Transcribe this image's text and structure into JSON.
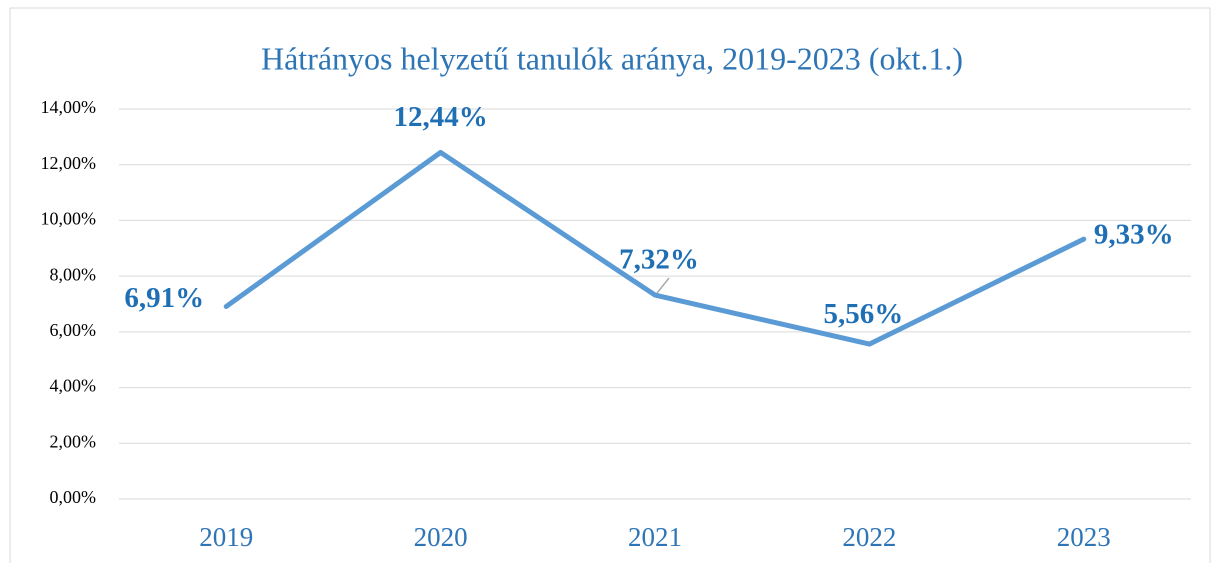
{
  "chart_data": {
    "type": "line",
    "title": "Hátrányos helyzetű tanulók aránya, 2019-2023 (okt.1.)",
    "categories": [
      "2019",
      "2020",
      "2021",
      "2022",
      "2023"
    ],
    "series": [
      {
        "name": "Hátrányos helyzetű tanulók aránya",
        "color": "#5b9bd5",
        "values": [
          6.91,
          12.44,
          7.32,
          5.56,
          9.33
        ],
        "value_labels": [
          "6,91%",
          "12,44%",
          "7,32%",
          "5,56%",
          "9,33%"
        ]
      }
    ],
    "ylim": [
      0,
      14
    ],
    "yticks": [
      {
        "value": 0,
        "label": "0,00%"
      },
      {
        "value": 2,
        "label": "2,00%"
      },
      {
        "value": 4,
        "label": "4,00%"
      },
      {
        "value": 6,
        "label": "6,00%"
      },
      {
        "value": 8,
        "label": "8,00%"
      },
      {
        "value": 10,
        "label": "10,00%"
      },
      {
        "value": 12,
        "label": "12,00%"
      },
      {
        "value": 14,
        "label": "14,00%"
      }
    ],
    "grid": true
  }
}
